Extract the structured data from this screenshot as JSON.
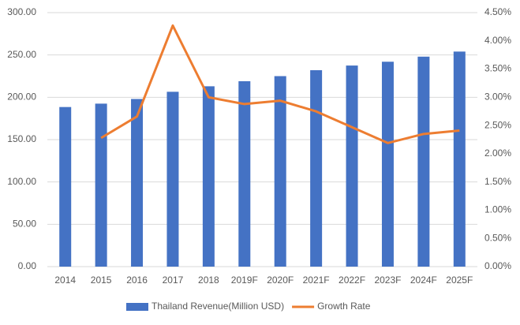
{
  "chart_data": {
    "type": "bar",
    "categories": [
      "2014",
      "2015",
      "2016",
      "2017",
      "2018",
      "2019F",
      "2020F",
      "2021F",
      "2022F",
      "2023F",
      "2024F",
      "2025F"
    ],
    "series": [
      {
        "name": "Thailand Revenue(Million USD)",
        "type": "bar",
        "color": "#4472c4",
        "values": [
          188.5,
          192.5,
          198,
          206.5,
          213,
          219,
          225,
          232,
          237.5,
          242,
          248,
          254
        ]
      },
      {
        "name": "Growth Rate",
        "type": "line",
        "axis": "y2",
        "color": "#ed7d31",
        "values": [
          null,
          2.28,
          2.66,
          4.27,
          3.0,
          2.88,
          2.94,
          2.75,
          2.47,
          2.19,
          2.35,
          2.41
        ]
      }
    ],
    "ylim": [
      0,
      300
    ],
    "yticks": [
      {
        "value": 0,
        "label": "0.00"
      },
      {
        "value": 50,
        "label": "50.00"
      },
      {
        "value": 100,
        "label": "100.00"
      },
      {
        "value": 150,
        "label": "150.00"
      },
      {
        "value": 200,
        "label": "200.00"
      },
      {
        "value": 250,
        "label": "250.00"
      },
      {
        "value": 300,
        "label": "300.00"
      }
    ],
    "y2lim": [
      0,
      4.5
    ],
    "y2ticks": [
      {
        "value": 0,
        "label": "0.00%"
      },
      {
        "value": 0.5,
        "label": "0.50%"
      },
      {
        "value": 1,
        "label": "1.00%"
      },
      {
        "value": 1.5,
        "label": "1.50%"
      },
      {
        "value": 2,
        "label": "2.00%"
      },
      {
        "value": 2.5,
        "label": "2.50%"
      },
      {
        "value": 3,
        "label": "3.00%"
      },
      {
        "value": 3.5,
        "label": "3.50%"
      },
      {
        "value": 4,
        "label": "4.00%"
      },
      {
        "value": 4.5,
        "label": "4.50%"
      }
    ],
    "grid": true,
    "legend": "bottom"
  }
}
